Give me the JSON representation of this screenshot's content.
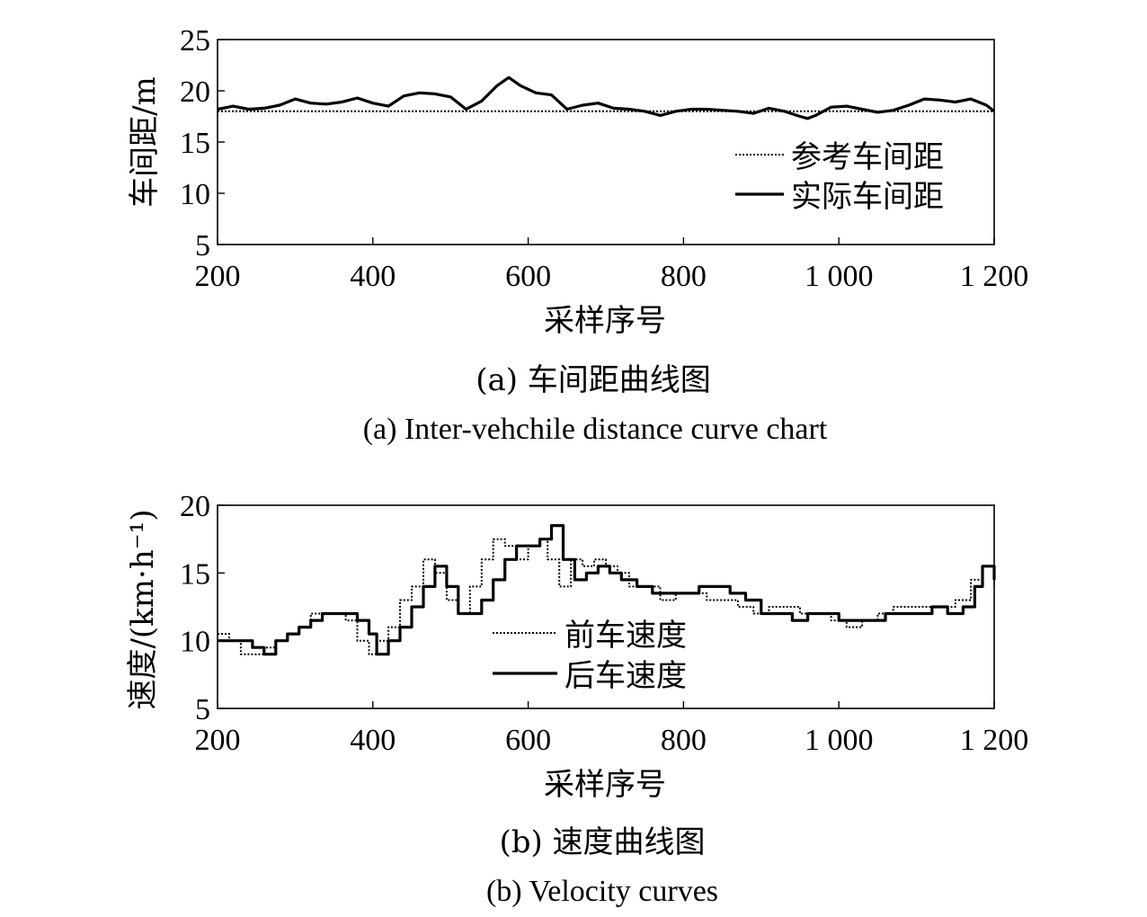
{
  "chart_data": [
    {
      "type": "line",
      "caption_cn": "(a) 车间距曲线图",
      "caption_en": "(a) Inter-vehchile distance curve chart",
      "xlabel": "采样序号",
      "ylabel": "车间距/m",
      "xlim": [
        200,
        1200
      ],
      "ylim": [
        5,
        25
      ],
      "xticks": [
        200,
        400,
        600,
        800,
        1000,
        1200
      ],
      "xtick_labels": [
        "200",
        "400",
        "600",
        "800",
        "1 000",
        "1 200"
      ],
      "yticks": [
        5,
        10,
        15,
        20,
        25
      ],
      "ytick_labels": [
        "5",
        "10",
        "15",
        "20",
        "25"
      ],
      "grid": false,
      "legend_position": "lower-right",
      "series": [
        {
          "name": "参考车间距",
          "style": "dotted",
          "x": [
            200,
            1200
          ],
          "y": [
            18,
            18
          ]
        },
        {
          "name": "实际车间距",
          "style": "solid",
          "x": [
            200,
            220,
            240,
            260,
            280,
            300,
            320,
            340,
            360,
            380,
            400,
            420,
            440,
            460,
            480,
            500,
            520,
            540,
            560,
            575,
            590,
            610,
            630,
            650,
            670,
            690,
            710,
            730,
            750,
            770,
            790,
            810,
            830,
            850,
            870,
            890,
            910,
            930,
            950,
            960,
            970,
            990,
            1010,
            1030,
            1050,
            1070,
            1090,
            1110,
            1130,
            1150,
            1170,
            1190,
            1200
          ],
          "y": [
            18.2,
            18.5,
            18.2,
            18.3,
            18.6,
            19.2,
            18.8,
            18.7,
            18.9,
            19.3,
            18.8,
            18.5,
            19.5,
            19.8,
            19.7,
            19.4,
            18.2,
            19.0,
            20.5,
            21.3,
            20.5,
            19.8,
            19.6,
            18.2,
            18.6,
            18.8,
            18.3,
            18.2,
            18.0,
            17.6,
            18.0,
            18.2,
            18.2,
            18.1,
            18.0,
            17.8,
            18.3,
            18.0,
            17.5,
            17.3,
            17.6,
            18.4,
            18.5,
            18.2,
            17.9,
            18.1,
            18.6,
            19.2,
            19.1,
            18.9,
            19.2,
            18.6,
            18.0
          ]
        }
      ]
    },
    {
      "type": "line",
      "caption_cn": "(b) 速度曲线图",
      "caption_en": "(b) Velocity curves",
      "xlabel": "采样序号",
      "ylabel": "速度/(km·h⁻¹)",
      "xlim": [
        200,
        1200
      ],
      "ylim": [
        5,
        20
      ],
      "xticks": [
        200,
        400,
        600,
        800,
        1000,
        1200
      ],
      "xtick_labels": [
        "200",
        "400",
        "600",
        "800",
        "1 000",
        "1 200"
      ],
      "yticks": [
        5,
        10,
        15,
        20
      ],
      "ytick_labels": [
        "5",
        "10",
        "15",
        "20"
      ],
      "grid": false,
      "legend_position": "lower-center",
      "series": [
        {
          "name": "前车速度",
          "style": "dotted",
          "x": [
            200,
            215,
            230,
            245,
            260,
            275,
            290,
            305,
            320,
            335,
            350,
            365,
            380,
            395,
            405,
            420,
            435,
            450,
            465,
            480,
            495,
            510,
            525,
            540,
            555,
            570,
            585,
            600,
            615,
            625,
            640,
            655,
            670,
            685,
            700,
            715,
            730,
            750,
            770,
            790,
            810,
            830,
            850,
            870,
            890,
            910,
            930,
            950,
            970,
            990,
            1010,
            1030,
            1050,
            1070,
            1090,
            1110,
            1130,
            1150,
            1170,
            1185,
            1200
          ],
          "y": [
            10.5,
            10,
            9,
            9,
            9.5,
            10,
            10.5,
            11,
            12,
            12,
            12,
            11.5,
            10,
            9,
            10,
            11,
            13,
            14,
            16,
            15,
            13,
            12,
            14,
            16,
            17.5,
            17,
            16,
            17,
            17.5,
            16,
            14,
            16,
            15.5,
            16,
            15.5,
            15,
            14,
            14,
            13,
            13.5,
            13.5,
            13,
            13,
            12.5,
            12,
            12.5,
            12.5,
            12,
            12,
            11.5,
            11,
            11.5,
            12,
            12.5,
            12.5,
            12.5,
            12.5,
            13,
            14.5,
            15.5,
            14
          ]
        },
        {
          "name": "后车速度",
          "style": "solid",
          "x": [
            200,
            215,
            230,
            245,
            260,
            275,
            290,
            305,
            320,
            335,
            350,
            365,
            380,
            395,
            405,
            420,
            435,
            450,
            465,
            480,
            495,
            510,
            525,
            540,
            555,
            570,
            585,
            600,
            615,
            630,
            645,
            660,
            675,
            690,
            705,
            720,
            740,
            760,
            780,
            800,
            820,
            840,
            860,
            880,
            900,
            920,
            940,
            960,
            980,
            1000,
            1020,
            1040,
            1060,
            1080,
            1100,
            1120,
            1140,
            1160,
            1175,
            1185,
            1200
          ],
          "y": [
            10,
            10,
            10,
            9.5,
            9,
            10,
            10.5,
            11,
            11.5,
            12,
            12,
            12,
            11.5,
            10.5,
            9,
            10,
            11,
            12.5,
            14,
            15.5,
            14,
            12,
            12,
            13,
            14.5,
            16,
            17,
            17,
            17.5,
            18.5,
            16,
            14.5,
            15,
            15.5,
            15,
            14.5,
            14,
            13.5,
            13.5,
            13.5,
            14,
            14,
            13.5,
            13,
            12,
            12,
            11.5,
            12,
            12,
            11.5,
            11.5,
            11.5,
            12,
            12,
            12,
            12.5,
            12,
            12.5,
            14,
            15.5,
            14.5
          ]
        }
      ]
    }
  ]
}
